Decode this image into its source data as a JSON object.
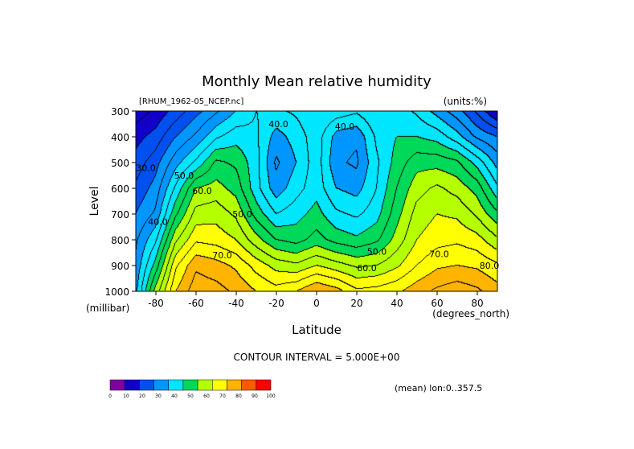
{
  "chart_data": {
    "type": "heatmap",
    "title": "Monthly Mean relative humidity",
    "source_label": "[RHUM_1962-05_NCEP.nc]",
    "units_label": "(units:%)",
    "xlabel": "Latitude",
    "ylabel": "Level",
    "x_units": "(degrees_north)",
    "y_units": "(millibar)",
    "xlim": [
      -90,
      90
    ],
    "ylim": [
      300,
      1000
    ],
    "x_ticks": [
      -80,
      -60,
      -40,
      -20,
      0,
      20,
      40,
      60,
      80
    ],
    "x_tick_labels": [
      "-80",
      "-60",
      "-40",
      "-20",
      "0",
      "20",
      "40",
      "60",
      "80"
    ],
    "y_ticks": [
      300,
      400,
      500,
      600,
      700,
      800,
      900,
      1000
    ],
    "y_tick_labels": [
      "300",
      "400",
      "500",
      "600",
      "700",
      "800",
      "900",
      "1000"
    ],
    "contour_interval_text": "CONTOUR INTERVAL = 5.000E+00",
    "mean_text": "(mean) lon:0..357.5",
    "contour_labels": [
      {
        "text": "40.0",
        "lat": -19,
        "lev": 350
      },
      {
        "text": "40.0",
        "lat": 14,
        "lev": 360
      },
      {
        "text": "30.0",
        "lat": -85,
        "lev": 520
      },
      {
        "text": "50.0",
        "lat": -66,
        "lev": 550
      },
      {
        "text": "60.0",
        "lat": -57,
        "lev": 610
      },
      {
        "text": "50.0",
        "lat": -37,
        "lev": 700
      },
      {
        "text": "40.0",
        "lat": -79,
        "lev": 730
      },
      {
        "text": "70.0",
        "lat": -47,
        "lev": 860
      },
      {
        "text": "50.0",
        "lat": 30,
        "lev": 845
      },
      {
        "text": "60.0",
        "lat": 25,
        "lev": 910
      },
      {
        "text": "70.0",
        "lat": 61,
        "lev": 855
      },
      {
        "text": "80.0",
        "lat": 86,
        "lev": 900
      }
    ],
    "colorbar": {
      "levels": [
        "0",
        "10",
        "20",
        "30",
        "40",
        "50",
        "60",
        "70",
        "80",
        "90",
        "100"
      ],
      "colors": [
        "#8000a0",
        "#1000c8",
        "#0050f0",
        "#0096ff",
        "#00e6ff",
        "#00d85a",
        "#b4ff00",
        "#ffff00",
        "#ffb400",
        "#ff5a00",
        "#ff0000"
      ]
    },
    "field": {
      "lats": [
        -90,
        -80,
        -70,
        -60,
        -50,
        -40,
        -30,
        -20,
        -10,
        0,
        10,
        20,
        30,
        40,
        50,
        60,
        70,
        80,
        90
      ],
      "levels": [
        300,
        400,
        500,
        600,
        700,
        800,
        900,
        1000
      ],
      "values": [
        [
          12,
          16,
          22,
          28,
          34,
          40,
          45,
          44,
          46,
          50,
          48,
          46,
          50,
          48,
          44,
          38,
          32,
          24,
          14
        ],
        [
          18,
          22,
          30,
          36,
          44,
          48,
          46,
          38,
          42,
          48,
          38,
          36,
          46,
          50,
          50,
          48,
          42,
          34,
          30
        ],
        [
          22,
          28,
          38,
          46,
          56,
          54,
          47,
          34,
          40,
          48,
          36,
          34,
          44,
          52,
          58,
          58,
          56,
          48,
          38
        ],
        [
          26,
          32,
          46,
          60,
          62,
          58,
          47,
          37,
          43,
          48,
          40,
          38,
          45,
          55,
          63,
          66,
          63,
          58,
          46
        ],
        [
          30,
          36,
          54,
          67,
          68,
          64,
          53,
          45,
          48,
          52,
          46,
          44,
          48,
          58,
          67,
          70,
          69,
          64,
          56
        ],
        [
          34,
          44,
          64,
          74,
          73,
          70,
          62,
          55,
          53,
          57,
          53,
          51,
          54,
          62,
          70,
          73,
          74,
          72,
          66
        ],
        [
          36,
          52,
          74,
          84,
          82,
          79,
          73,
          68,
          66,
          70,
          67,
          64,
          65,
          69,
          75,
          79,
          80,
          79,
          76
        ],
        [
          38,
          62,
          80,
          88,
          87,
          84,
          80,
          77,
          80,
          85,
          82,
          76,
          77,
          79,
          83,
          86,
          88,
          86,
          82
        ]
      ]
    }
  }
}
